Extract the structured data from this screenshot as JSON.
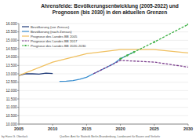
{
  "chart_data": {
    "type": "line",
    "title": "Ahrensfelde: Bevölkerungsentwicklung (2005-2022) und Prognosen (bis 2030) in den aktuellen Grenzen",
    "source": "Quellen: Amt für Statistik Berlin-Brandenburg, Landesamt für Bauen und Verkehr",
    "author": "by Hans G. Oberlack",
    "xlim": [
      2005,
      2030
    ],
    "xticks": [
      2005,
      2010,
      2015,
      2020,
      2025,
      2030
    ],
    "ylim": [
      10000,
      16000
    ],
    "yticks": [
      {
        "value": 10000,
        "label": "10.000"
      },
      {
        "value": 10500,
        "label": "10.500"
      },
      {
        "value": 11000,
        "label": "11.000"
      },
      {
        "value": 11500,
        "label": "11.500"
      },
      {
        "value": 12000,
        "label": "12.000"
      },
      {
        "value": 12500,
        "label": "12.500"
      },
      {
        "value": 13000,
        "label": "13.000"
      },
      {
        "value": 13500,
        "label": "13.500"
      },
      {
        "value": 14000,
        "label": "14.000"
      },
      {
        "value": 14500,
        "label": "14.500"
      },
      {
        "value": 15000,
        "label": "15.000"
      },
      {
        "value": 15500,
        "label": "15.500"
      },
      {
        "value": 16000,
        "label": "16.000"
      }
    ],
    "grid": true,
    "legend": "upper-left",
    "series": [
      {
        "name": "Bevölkerung (vor Zensus)",
        "color": "#1f3a78",
        "line_style": "solid",
        "x": [
          2005,
          2006,
          2007,
          2008,
          2009,
          2010
        ],
        "values": [
          12900,
          13010,
          13000,
          12980,
          13040,
          13020
        ]
      },
      {
        "name": "Bevölkerung (nach Zensus)",
        "color": "#3a8fd0",
        "line_style": "solid",
        "x": [
          2011,
          2012,
          2013,
          2014,
          2015,
          2016,
          2017,
          2018,
          2019,
          2020,
          2021,
          2022
        ],
        "values": [
          12550,
          12560,
          12600,
          12680,
          12800,
          13000,
          13200,
          13400,
          13600,
          13900,
          14100,
          14300
        ]
      },
      {
        "name": "Prognose des Landes BB 2005",
        "color": "#f0c060",
        "line_style": "solid",
        "x": [
          2005,
          2010,
          2015,
          2020,
          2025,
          2030
        ],
        "values": [
          12900,
          13700,
          14200,
          14450,
          14450,
          14250
        ]
      },
      {
        "name": "Prognose des Landes BB 2017",
        "color": "#7a3c8c",
        "line_style": "dashed",
        "x": [
          2016,
          2020,
          2025,
          2030
        ],
        "values": [
          13000,
          13800,
          13700,
          13400
        ]
      },
      {
        "name": "Prognose des Landes BB 2020-2030",
        "color": "#3cb043",
        "line_style": "dashed",
        "marker": "circle",
        "x": [
          2020,
          2021,
          2022,
          2025,
          2030
        ],
        "values": [
          13900,
          14100,
          14300,
          14900,
          15950
        ]
      }
    ]
  }
}
